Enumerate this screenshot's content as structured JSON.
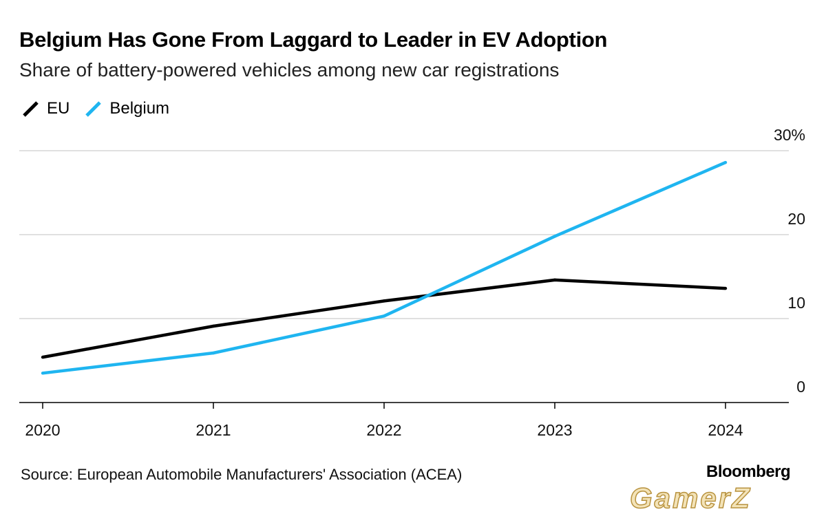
{
  "header": {
    "title": "Belgium Has Gone From Laggard to Leader in EV Adoption",
    "subtitle": "Share of battery-powered vehicles among new car registrations"
  },
  "legend": [
    {
      "label": "EU",
      "color": "#000000"
    },
    {
      "label": "Belgium",
      "color": "#1fb5f0"
    }
  ],
  "footer": {
    "source": "Source: European Automobile Manufacturers' Association (ACEA)",
    "brand": "Bloomberg",
    "watermark": "GamerZ"
  },
  "chart_data": {
    "type": "line",
    "x": [
      "2020",
      "2021",
      "2022",
      "2023",
      "2024"
    ],
    "series": [
      {
        "name": "EU",
        "color": "#000000",
        "values": [
          5.4,
          9.1,
          12.1,
          14.6,
          13.6
        ]
      },
      {
        "name": "Belgium",
        "color": "#1fb5f0",
        "values": [
          3.5,
          5.9,
          10.3,
          19.8,
          28.6
        ]
      }
    ],
    "yticks": [
      {
        "value": 0,
        "label": "0"
      },
      {
        "value": 10,
        "label": "10"
      },
      {
        "value": 20,
        "label": "20"
      },
      {
        "value": 30,
        "label": "30%"
      }
    ],
    "ylim": [
      0,
      30
    ],
    "grid": true,
    "xlabel": "",
    "ylabel": "",
    "legend_position": "top-left"
  }
}
